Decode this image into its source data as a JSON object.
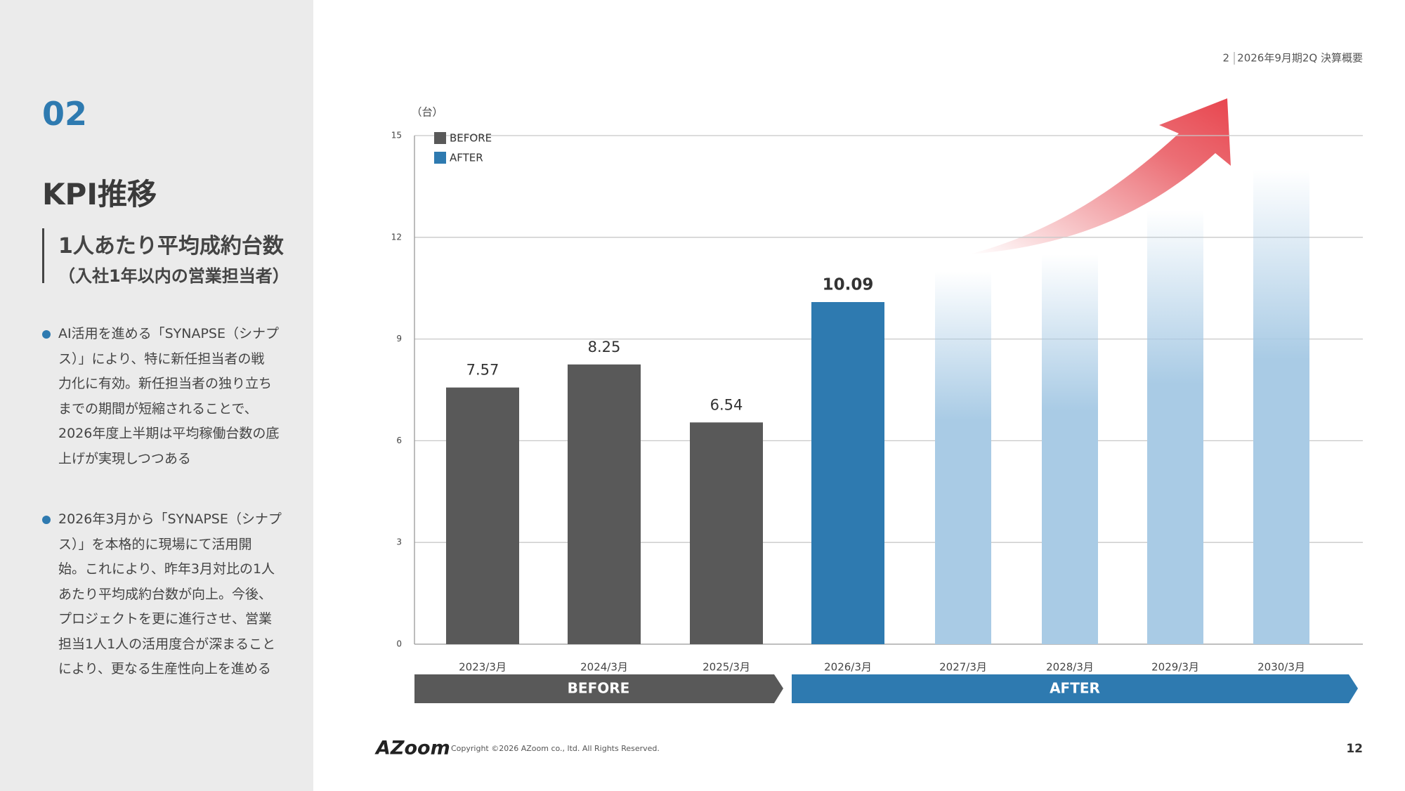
{
  "header": {
    "page": 2,
    "title": "2026年9月期2Q 決算概要"
  },
  "section": {
    "number": "02",
    "title": "KPI推移",
    "subtitle": "1人あたり平均成約台数",
    "subtitle_note": "（入社1年以内の営業担当者）",
    "bullets": [
      [
        "AI活用を進める「SYNAPSE（シナプ",
        "ス）」により、特に新任担当者の戦",
        "力化に有効。新任担当者の独り立ち",
        "までの期間が短縮されることで、",
        "2026年度上半期は平均稼働台数の底",
        "上げが実現しつつある"
      ],
      [
        "2026年3月から「SYNAPSE（シナプ",
        "ス）」を本格的に現場にて活用開",
        "始。これにより、昨年3月対比の1人",
        "あたり平均成約台数が向上。今後、",
        "プロジェクトを更に進行させ、営業",
        "担当1人1人の活用度合が深まること",
        "により、更なる生産性向上を進める"
      ]
    ]
  },
  "chart_data": {
    "type": "bar",
    "y_label": "（台）",
    "categories": [
      "2023/3月",
      "2024/3月",
      "2025/3月",
      "2026/3月",
      "2027/3月",
      "2028/3月",
      "2029/3月",
      "2030/3月"
    ],
    "series": [
      {
        "name": "BEFORE",
        "color": "#595959",
        "values": [
          7.57,
          8.25,
          6.54,
          null,
          null,
          null,
          null,
          null
        ]
      },
      {
        "name": "AFTER",
        "color": "#2e7ab0",
        "values": [
          null,
          null,
          null,
          10.09,
          11.0,
          11.5,
          12.8,
          14.0
        ],
        "value_labels": [
          null,
          null,
          null,
          "10.09",
          null,
          null,
          null,
          null
        ]
      }
    ],
    "ylim": [
      0,
      15
    ],
    "yticks": [
      0,
      3,
      6,
      9,
      12,
      15
    ],
    "grid": true,
    "legend": "top-left"
  },
  "footer": {
    "logo": "AZoom",
    "copyright": "Copyright ©2026 AZoom co., ltd. All Rights Reserved.",
    "page_number": 12
  }
}
